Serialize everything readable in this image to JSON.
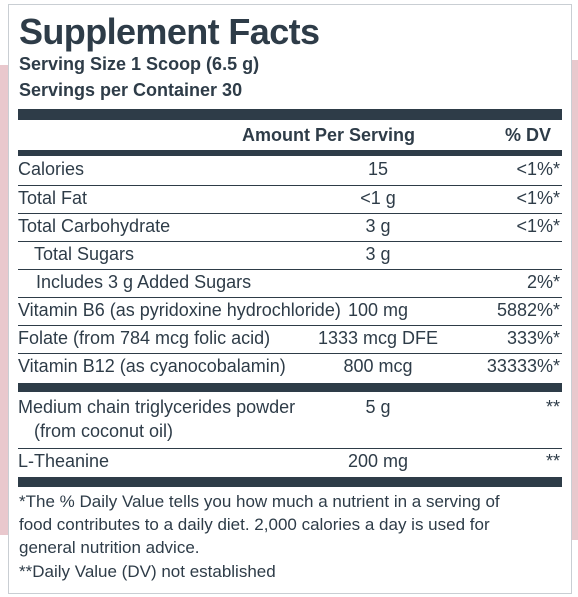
{
  "title": "Supplement Facts",
  "serving_size": "Serving Size 1 Scoop (6.5 g)",
  "servings_per_container": "Servings per Container 30",
  "header": {
    "amount": "Amount Per Serving",
    "dv": "% DV"
  },
  "rows": [
    {
      "name": "Calories",
      "amount": "15",
      "dv": "<1%*"
    },
    {
      "name": "Total Fat",
      "amount": "<1 g",
      "dv": "<1%*"
    },
    {
      "name": "Total Carbohydrate",
      "amount": "3 g",
      "dv": "<1%*"
    },
    {
      "name": "Total Sugars",
      "amount": "3 g",
      "dv": ""
    },
    {
      "name": "Includes 3 g Added Sugars",
      "amount": "",
      "dv": "2%*"
    },
    {
      "name": "Vitamin B6 (as pyridoxine hydrochloride)",
      "amount": "100 mg",
      "dv": "5882%*"
    },
    {
      "name": "Folate (from 784 mcg folic acid)",
      "amount": "1333 mcg DFE",
      "dv": "333%*"
    },
    {
      "name": "Vitamin B12 (as cyanocobalamin)",
      "amount": "800 mcg",
      "dv": "33333%*"
    },
    {
      "name": "Medium chain triglycerides powder",
      "name_line2": "(from coconut oil)",
      "amount": "5 g",
      "dv": "**"
    },
    {
      "name": "L-Theanine",
      "amount": "200 mg",
      "dv": "**"
    }
  ],
  "footnotes": {
    "line1": "*The % Daily Value tells you how much a nutrient in a serving of",
    "line2": "food contributes to a daily diet. 2,000 calories a day is used for",
    "line3": "general nutrition advice.",
    "line4": "**Daily Value (DV) not established"
  },
  "colors": {
    "text": "#2e3c48",
    "rule": "#2e3c48",
    "accent": "#e9c8cd"
  }
}
